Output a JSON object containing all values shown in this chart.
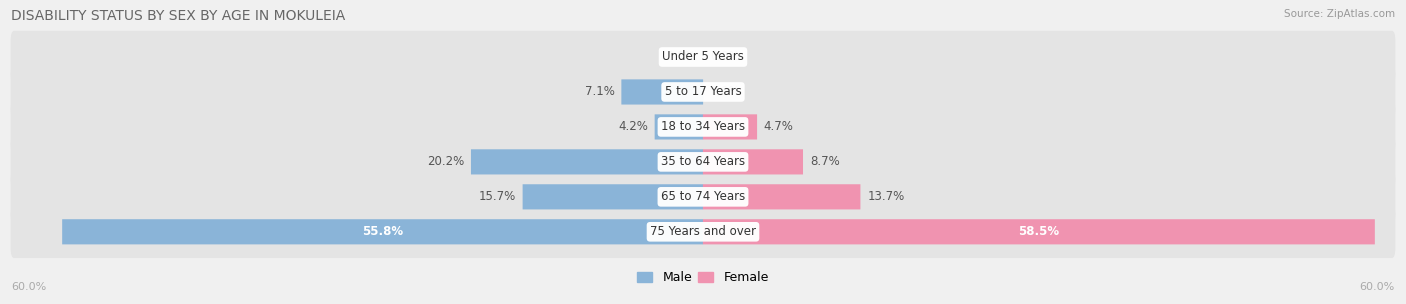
{
  "title": "DISABILITY STATUS BY SEX BY AGE IN MOKULEIA",
  "source": "Source: ZipAtlas.com",
  "categories": [
    "Under 5 Years",
    "5 to 17 Years",
    "18 to 34 Years",
    "35 to 64 Years",
    "65 to 74 Years",
    "75 Years and over"
  ],
  "male_values": [
    0.0,
    7.1,
    4.2,
    20.2,
    15.7,
    55.8
  ],
  "female_values": [
    0.0,
    0.0,
    4.7,
    8.7,
    13.7,
    58.5
  ],
  "male_color": "#8ab4d8",
  "female_color": "#f093b0",
  "max_value": 60.0,
  "bg_color": "#f0f0f0",
  "row_bg_color": "#e4e4e4",
  "title_color": "#666666",
  "label_color": "#555555",
  "axis_label_color": "#aaaaaa",
  "category_fontsize": 8.5,
  "value_fontsize": 8.5,
  "title_fontsize": 10,
  "source_fontsize": 7.5
}
